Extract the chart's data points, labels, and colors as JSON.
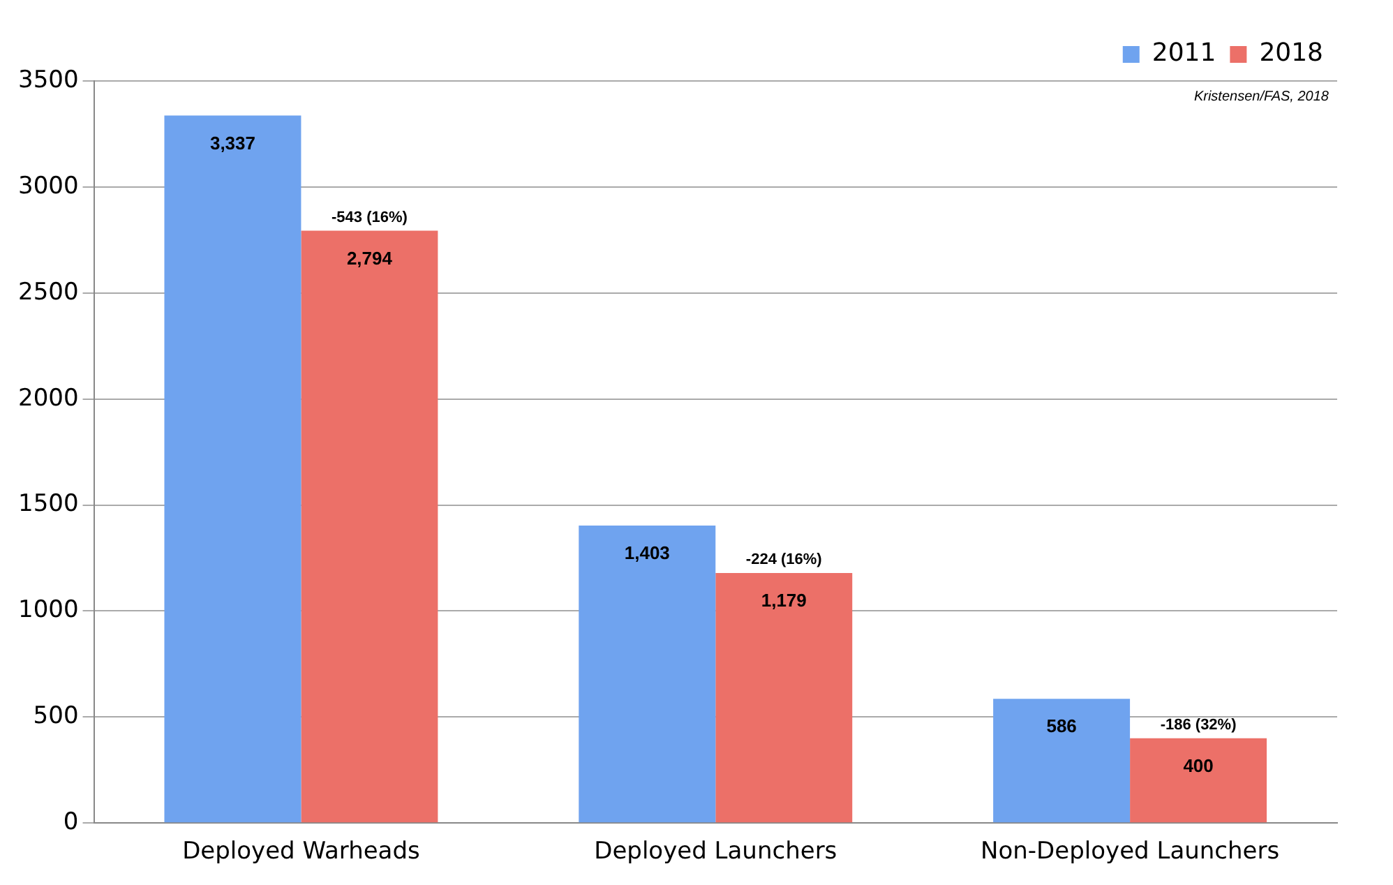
{
  "chart_data": {
    "type": "bar",
    "categories": [
      "Deployed Warheads",
      "Deployed Launchers",
      "Non-Deployed Launchers"
    ],
    "series": [
      {
        "name": "2011",
        "color": "#6fa3ef",
        "values": [
          3337,
          1403,
          586
        ],
        "value_labels": [
          "3,337",
          "1,403",
          "586"
        ]
      },
      {
        "name": "2018",
        "color": "#ec7068",
        "values": [
          2794,
          1179,
          400
        ],
        "value_labels": [
          "2,794",
          "1,179",
          "400"
        ]
      }
    ],
    "ylim": [
      0,
      3500
    ],
    "yticks": [
      0,
      500,
      1000,
      1500,
      2000,
      2500,
      3000,
      3500
    ],
    "grid": "y",
    "legend": "top right",
    "annotations": [
      {
        "text": "-543 (16%)",
        "x": "Deployed Warheads",
        "y": 2794
      },
      {
        "text": "-224 (16%)",
        "x": "Deployed Launchers",
        "y": 1179
      },
      {
        "text": "-186 (32%)",
        "x": "Non-Deployed Launchers",
        "y": 400
      },
      "Kristensen/FAS, 2018"
    ]
  }
}
